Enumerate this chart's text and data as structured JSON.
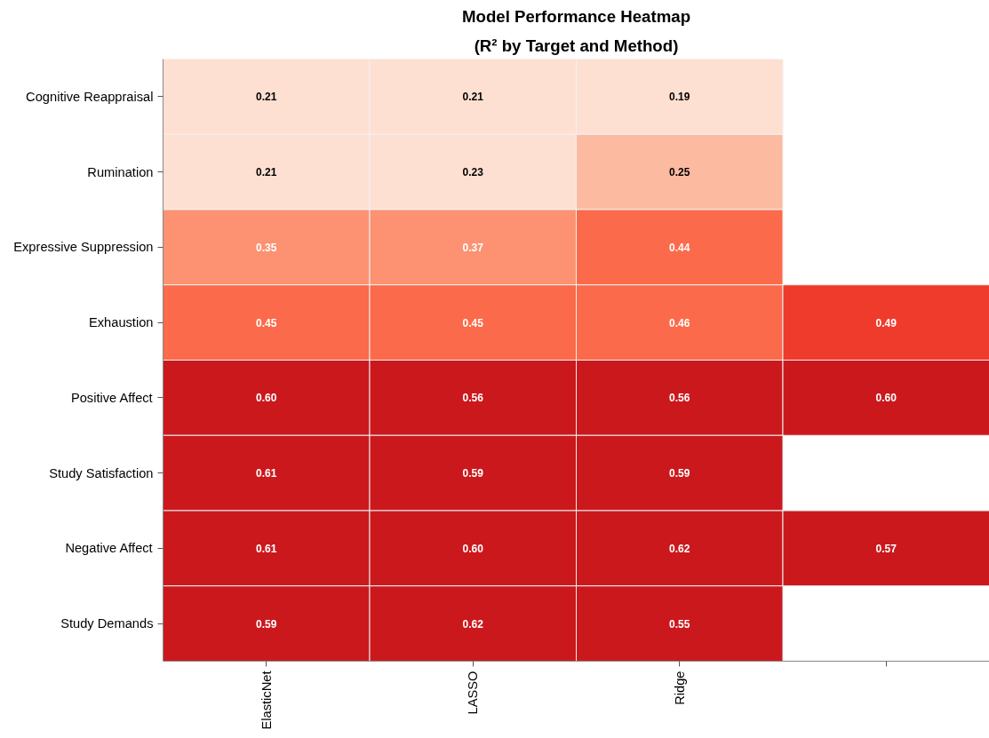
{
  "chart_data": {
    "type": "heatmap",
    "title": "Model Performance Heatmap",
    "subtitle": "(R² by Target and Method)",
    "categories": [
      "ElasticNet",
      "LASSO",
      "Ridge",
      null
    ],
    "y_categories": [
      "Cognitive Reappraisal",
      "Rumination",
      "Expressive Suppression",
      "Exhaustion",
      "Positive Affect",
      "Study Satisfaction",
      "Negative Affect",
      "Study Demands"
    ],
    "cells": [
      [
        0.21,
        0.21,
        0.19,
        null
      ],
      [
        0.21,
        0.23,
        0.25,
        null
      ],
      [
        0.35,
        0.37,
        0.44,
        null
      ],
      [
        0.45,
        0.45,
        0.46,
        0.49
      ],
      [
        0.6,
        0.56,
        0.56,
        0.6
      ],
      [
        0.61,
        0.59,
        0.59,
        null
      ],
      [
        0.61,
        0.6,
        0.62,
        0.57
      ],
      [
        0.59,
        0.62,
        0.55,
        null
      ]
    ],
    "cell_labels": [
      [
        "0.21",
        "0.21",
        "0.19",
        null
      ],
      [
        "0.21",
        "0.23",
        "0.25",
        null
      ],
      [
        "0.35",
        "0.37",
        "0.44",
        null
      ],
      [
        "0.45",
        "0.45",
        "0.46",
        "0.49"
      ],
      [
        "0.60",
        "0.56",
        "0.56",
        "0.60"
      ],
      [
        "0.61",
        "0.59",
        "0.59",
        null
      ],
      [
        "0.61",
        "0.60",
        "0.62",
        "0.57"
      ],
      [
        "0.59",
        "0.62",
        "0.55",
        null
      ]
    ]
  }
}
